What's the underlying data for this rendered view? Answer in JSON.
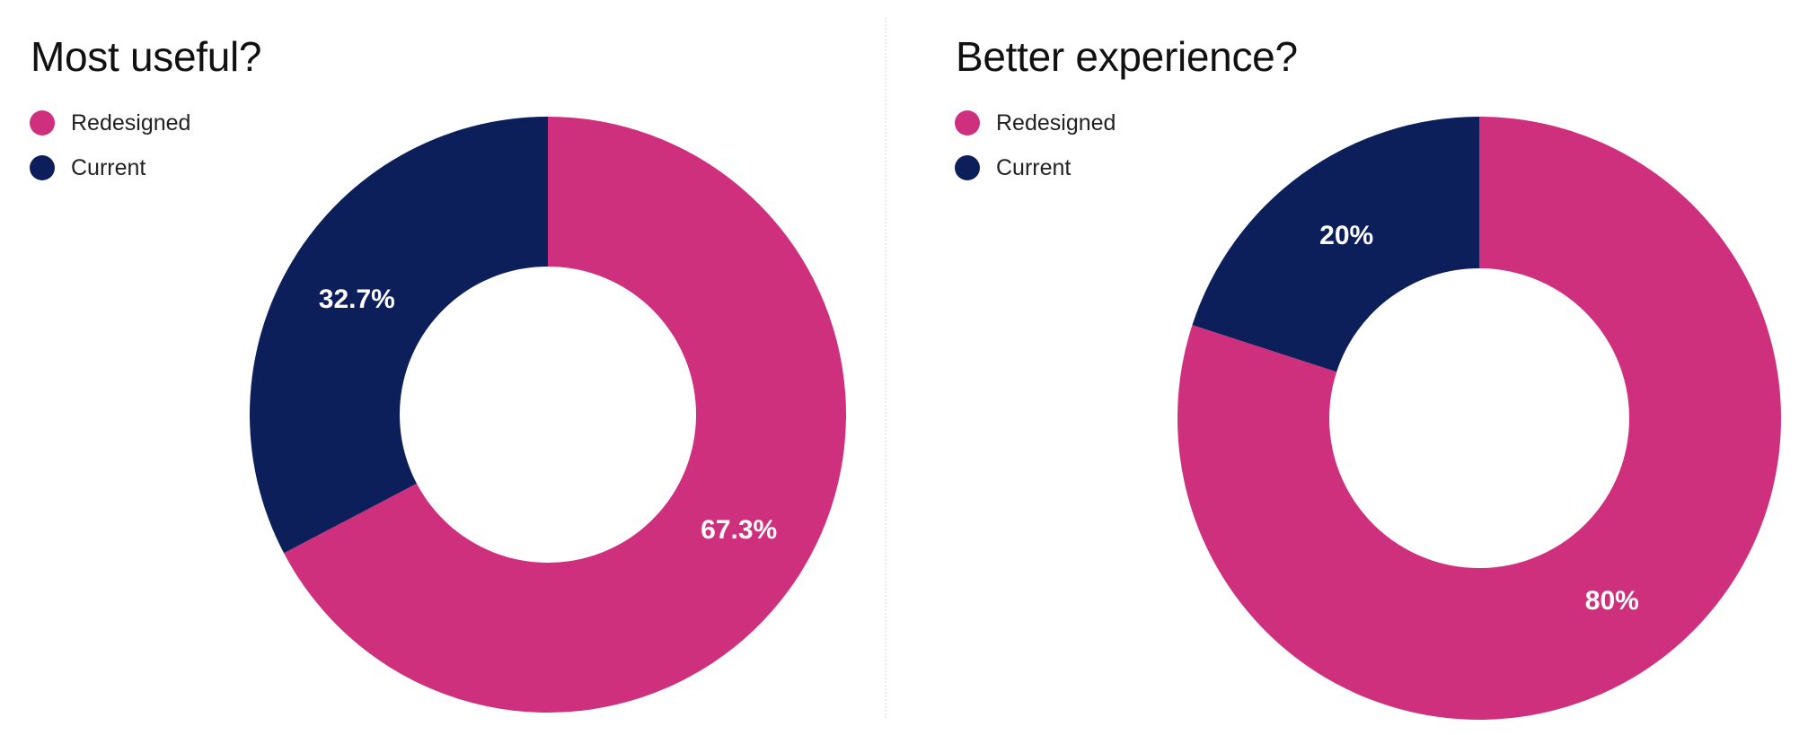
{
  "colors": {
    "redesigned": "#CF307D",
    "current": "#0C1F5A"
  },
  "chart_data": [
    {
      "type": "pie",
      "style": "donut",
      "title": "Most useful?",
      "legend_position": "top-left",
      "slices": [
        {
          "label": "Redesigned",
          "value": 67.3,
          "display": "67.3%",
          "color": "#CF307D"
        },
        {
          "label": "Current",
          "value": 32.7,
          "display": "32.7%",
          "color": "#0C1F5A"
        }
      ]
    },
    {
      "type": "pie",
      "style": "donut",
      "title": "Better experience?",
      "legend_position": "top-left",
      "slices": [
        {
          "label": "Redesigned",
          "value": 80,
          "display": "80%",
          "color": "#CF307D"
        },
        {
          "label": "Current",
          "value": 20,
          "display": "20%",
          "color": "#0C1F5A"
        }
      ]
    }
  ]
}
